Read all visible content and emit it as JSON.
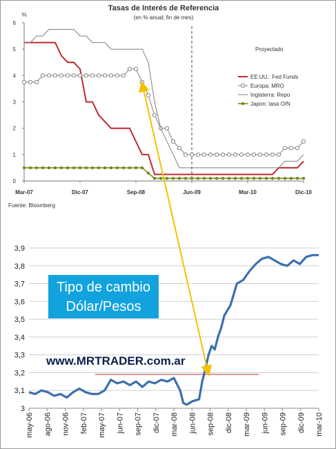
{
  "colors": {
    "fed": "#c0282f",
    "mro": "#7f7f7f",
    "repo": "#7f7f7f",
    "japan_line": "#9a9a40",
    "japan_marker": "#6b8e23",
    "fx_line": "#3d6fb0",
    "arrow": "#f2c200",
    "ref_line": "#c0282f",
    "label_box": "#12a3df"
  },
  "chart_data": [
    {
      "type": "line",
      "title": "Tasas de Interés de Referencia",
      "subtitle": "(en % anual; fin de mes)",
      "y_unit": "%",
      "x_tick_labels": [
        "Mar-07",
        "Dic-07",
        "Sep-08",
        "Jun-09",
        "Mar-10",
        "Dic-10"
      ],
      "xlim": [
        0,
        45
      ],
      "ylim": [
        0,
        6
      ],
      "y_ticks": [
        0,
        1,
        2,
        3,
        4,
        5,
        6
      ],
      "annotation": "Proyectado",
      "projection_start_index": 27,
      "source": "Fuente: Bloomberg",
      "legend_position": "right",
      "series": [
        {
          "name": "EE.UU.: Fed Funds",
          "values": [
            5.25,
            5.25,
            5.25,
            5.25,
            5.25,
            5.25,
            4.75,
            4.5,
            4.5,
            4.25,
            3,
            3,
            2.5,
            2.25,
            2,
            2,
            2,
            2,
            1.5,
            1,
            1,
            0.25,
            0.25,
            0.25,
            0.25,
            0.25,
            0.25,
            0.25,
            0.25,
            0.25,
            0.25,
            0.25,
            0.25,
            0.25,
            0.25,
            0.25,
            0.25,
            0.25,
            0.25,
            0.25,
            0.25,
            0.5,
            0.5,
            0.5,
            0.5,
            0.75
          ]
        },
        {
          "name": "Europa: MRO",
          "values": [
            3.75,
            3.75,
            3.75,
            4,
            4,
            4,
            4,
            4,
            4,
            4,
            4,
            4,
            4,
            4,
            4,
            4,
            4,
            4.25,
            4.25,
            3.75,
            3.25,
            2.5,
            2,
            2,
            1.5,
            1.25,
            1,
            1,
            1,
            1,
            1,
            1,
            1,
            1,
            1,
            1,
            1,
            1,
            1,
            1,
            1,
            1,
            1.25,
            1.25,
            1.25,
            1.5
          ]
        },
        {
          "name": "Inglaterra: Repo",
          "values": [
            5.25,
            5.25,
            5.5,
            5.5,
            5.75,
            5.75,
            5.75,
            5.75,
            5.75,
            5.5,
            5.5,
            5.25,
            5.25,
            5.25,
            5,
            5,
            5,
            5,
            5,
            5,
            4.5,
            3,
            2,
            1.5,
            1,
            0.5,
            0.5,
            0.5,
            0.5,
            0.5,
            0.5,
            0.5,
            0.5,
            0.5,
            0.5,
            0.5,
            0.5,
            0.5,
            0.5,
            0.5,
            0.5,
            0.5,
            0.75,
            0.75,
            0.75,
            1
          ]
        },
        {
          "name": "Japon: tasa O/N",
          "values": [
            0.5,
            0.5,
            0.5,
            0.5,
            0.5,
            0.5,
            0.5,
            0.5,
            0.5,
            0.5,
            0.5,
            0.5,
            0.5,
            0.5,
            0.5,
            0.5,
            0.5,
            0.5,
            0.5,
            0.5,
            0.3,
            0.1,
            0.1,
            0.1,
            0.1,
            0.1,
            0.1,
            0.1,
            0.1,
            0.1,
            0.1,
            0.1,
            0.1,
            0.1,
            0.1,
            0.1,
            0.1,
            0.1,
            0.1,
            0.1,
            0.1,
            0.1,
            0.1,
            0.1,
            0.1,
            0.1
          ]
        }
      ]
    },
    {
      "type": "line",
      "title": "",
      "x_tick_labels": [
        "may-06",
        "ago-06",
        "nov-06",
        "feb-07",
        "may-07",
        "jun-07",
        "sep-07",
        "dic-07",
        "mar-08",
        "jun-08",
        "sep-08",
        "dic-08",
        "mar-09",
        "jun-09",
        "sep-09",
        "dic-09",
        "mar-10"
      ],
      "xlim": [
        0,
        46
      ],
      "ylim": [
        3,
        3.9
      ],
      "y_ticks": [
        3,
        3.1,
        3.2,
        3.3,
        3.4,
        3.5,
        3.6,
        3.7,
        3.8,
        3.9
      ],
      "legend_position": "none",
      "label_box": [
        "Tipo de cambio",
        "Dólar/Pesos"
      ],
      "reference_line": {
        "value": 3.19,
        "x_from": 10.5,
        "x_to": 36.5
      },
      "watermark": "www.MRTRADER.com.ar",
      "series": [
        {
          "name": "",
          "points": [
            [
              0,
              3.09
            ],
            [
              1,
              3.08
            ],
            [
              2,
              3.1
            ],
            [
              3,
              3.09
            ],
            [
              4,
              3.07
            ],
            [
              5,
              3.08
            ],
            [
              6,
              3.06
            ],
            [
              7,
              3.09
            ],
            [
              8,
              3.11
            ],
            [
              9,
              3.09
            ],
            [
              10,
              3.08
            ],
            [
              11,
              3.08
            ],
            [
              12,
              3.1
            ],
            [
              13,
              3.16
            ],
            [
              14,
              3.14
            ],
            [
              15,
              3.15
            ],
            [
              16,
              3.13
            ],
            [
              17,
              3.15
            ],
            [
              18,
              3.12
            ],
            [
              19,
              3.15
            ],
            [
              20,
              3.14
            ],
            [
              21,
              3.16
            ],
            [
              22,
              3.15
            ],
            [
              23,
              3.17
            ],
            [
              24,
              3.1
            ],
            [
              24.5,
              3.03
            ],
            [
              25,
              3.02
            ],
            [
              26,
              3.04
            ],
            [
              27,
              3.05
            ],
            [
              27.5,
              3.15
            ],
            [
              28,
              3.22
            ],
            [
              28.5,
              3.3
            ],
            [
              29,
              3.35
            ],
            [
              29.5,
              3.33
            ],
            [
              30,
              3.4
            ],
            [
              30.5,
              3.45
            ],
            [
              31,
              3.52
            ],
            [
              32,
              3.58
            ],
            [
              33,
              3.7
            ],
            [
              34,
              3.72
            ],
            [
              35,
              3.77
            ],
            [
              36,
              3.81
            ],
            [
              37,
              3.84
            ],
            [
              38,
              3.85
            ],
            [
              39,
              3.83
            ],
            [
              40,
              3.81
            ],
            [
              41,
              3.8
            ],
            [
              42,
              3.83
            ],
            [
              43,
              3.81
            ],
            [
              44,
              3.85
            ],
            [
              45,
              3.86
            ],
            [
              46,
              3.86
            ]
          ]
        }
      ]
    }
  ]
}
